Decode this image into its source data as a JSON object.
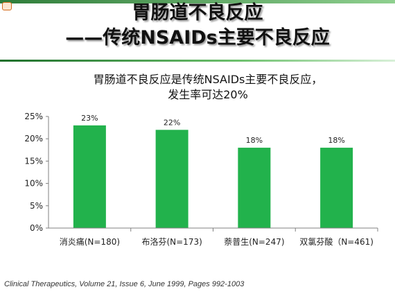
{
  "slide": {
    "title_line1": "胃肠道不良反应",
    "title_line2": "——传统NSAIDs主要不良反应"
  },
  "citation": "Clinical Therapeutics, Volume 21, Issue 6, June 1999, Pages 992-1003",
  "colors": {
    "bar": "#22b24c",
    "axis": "#808080",
    "grid": "#d0d0d0"
  },
  "chart_data": {
    "type": "bar",
    "title": "胃肠道不良反应是传统NSAIDs主要不良反应，",
    "subtitle": "发生率可达20%",
    "categories": [
      "消炎痛(N=180)",
      "布洛芬(N=173)",
      "萘普生(N=247)",
      "双氯芬酸（N=461)"
    ],
    "values": [
      23,
      22,
      18,
      18
    ],
    "data_labels": [
      "23%",
      "22%",
      "18%",
      "18%"
    ],
    "ylim": [
      0,
      25
    ],
    "yticks": [
      0,
      5,
      10,
      15,
      20,
      25
    ],
    "ytick_labels": [
      "0%",
      "5%",
      "10%",
      "15%",
      "20%",
      "25%"
    ],
    "grid": false,
    "legend": "none"
  }
}
